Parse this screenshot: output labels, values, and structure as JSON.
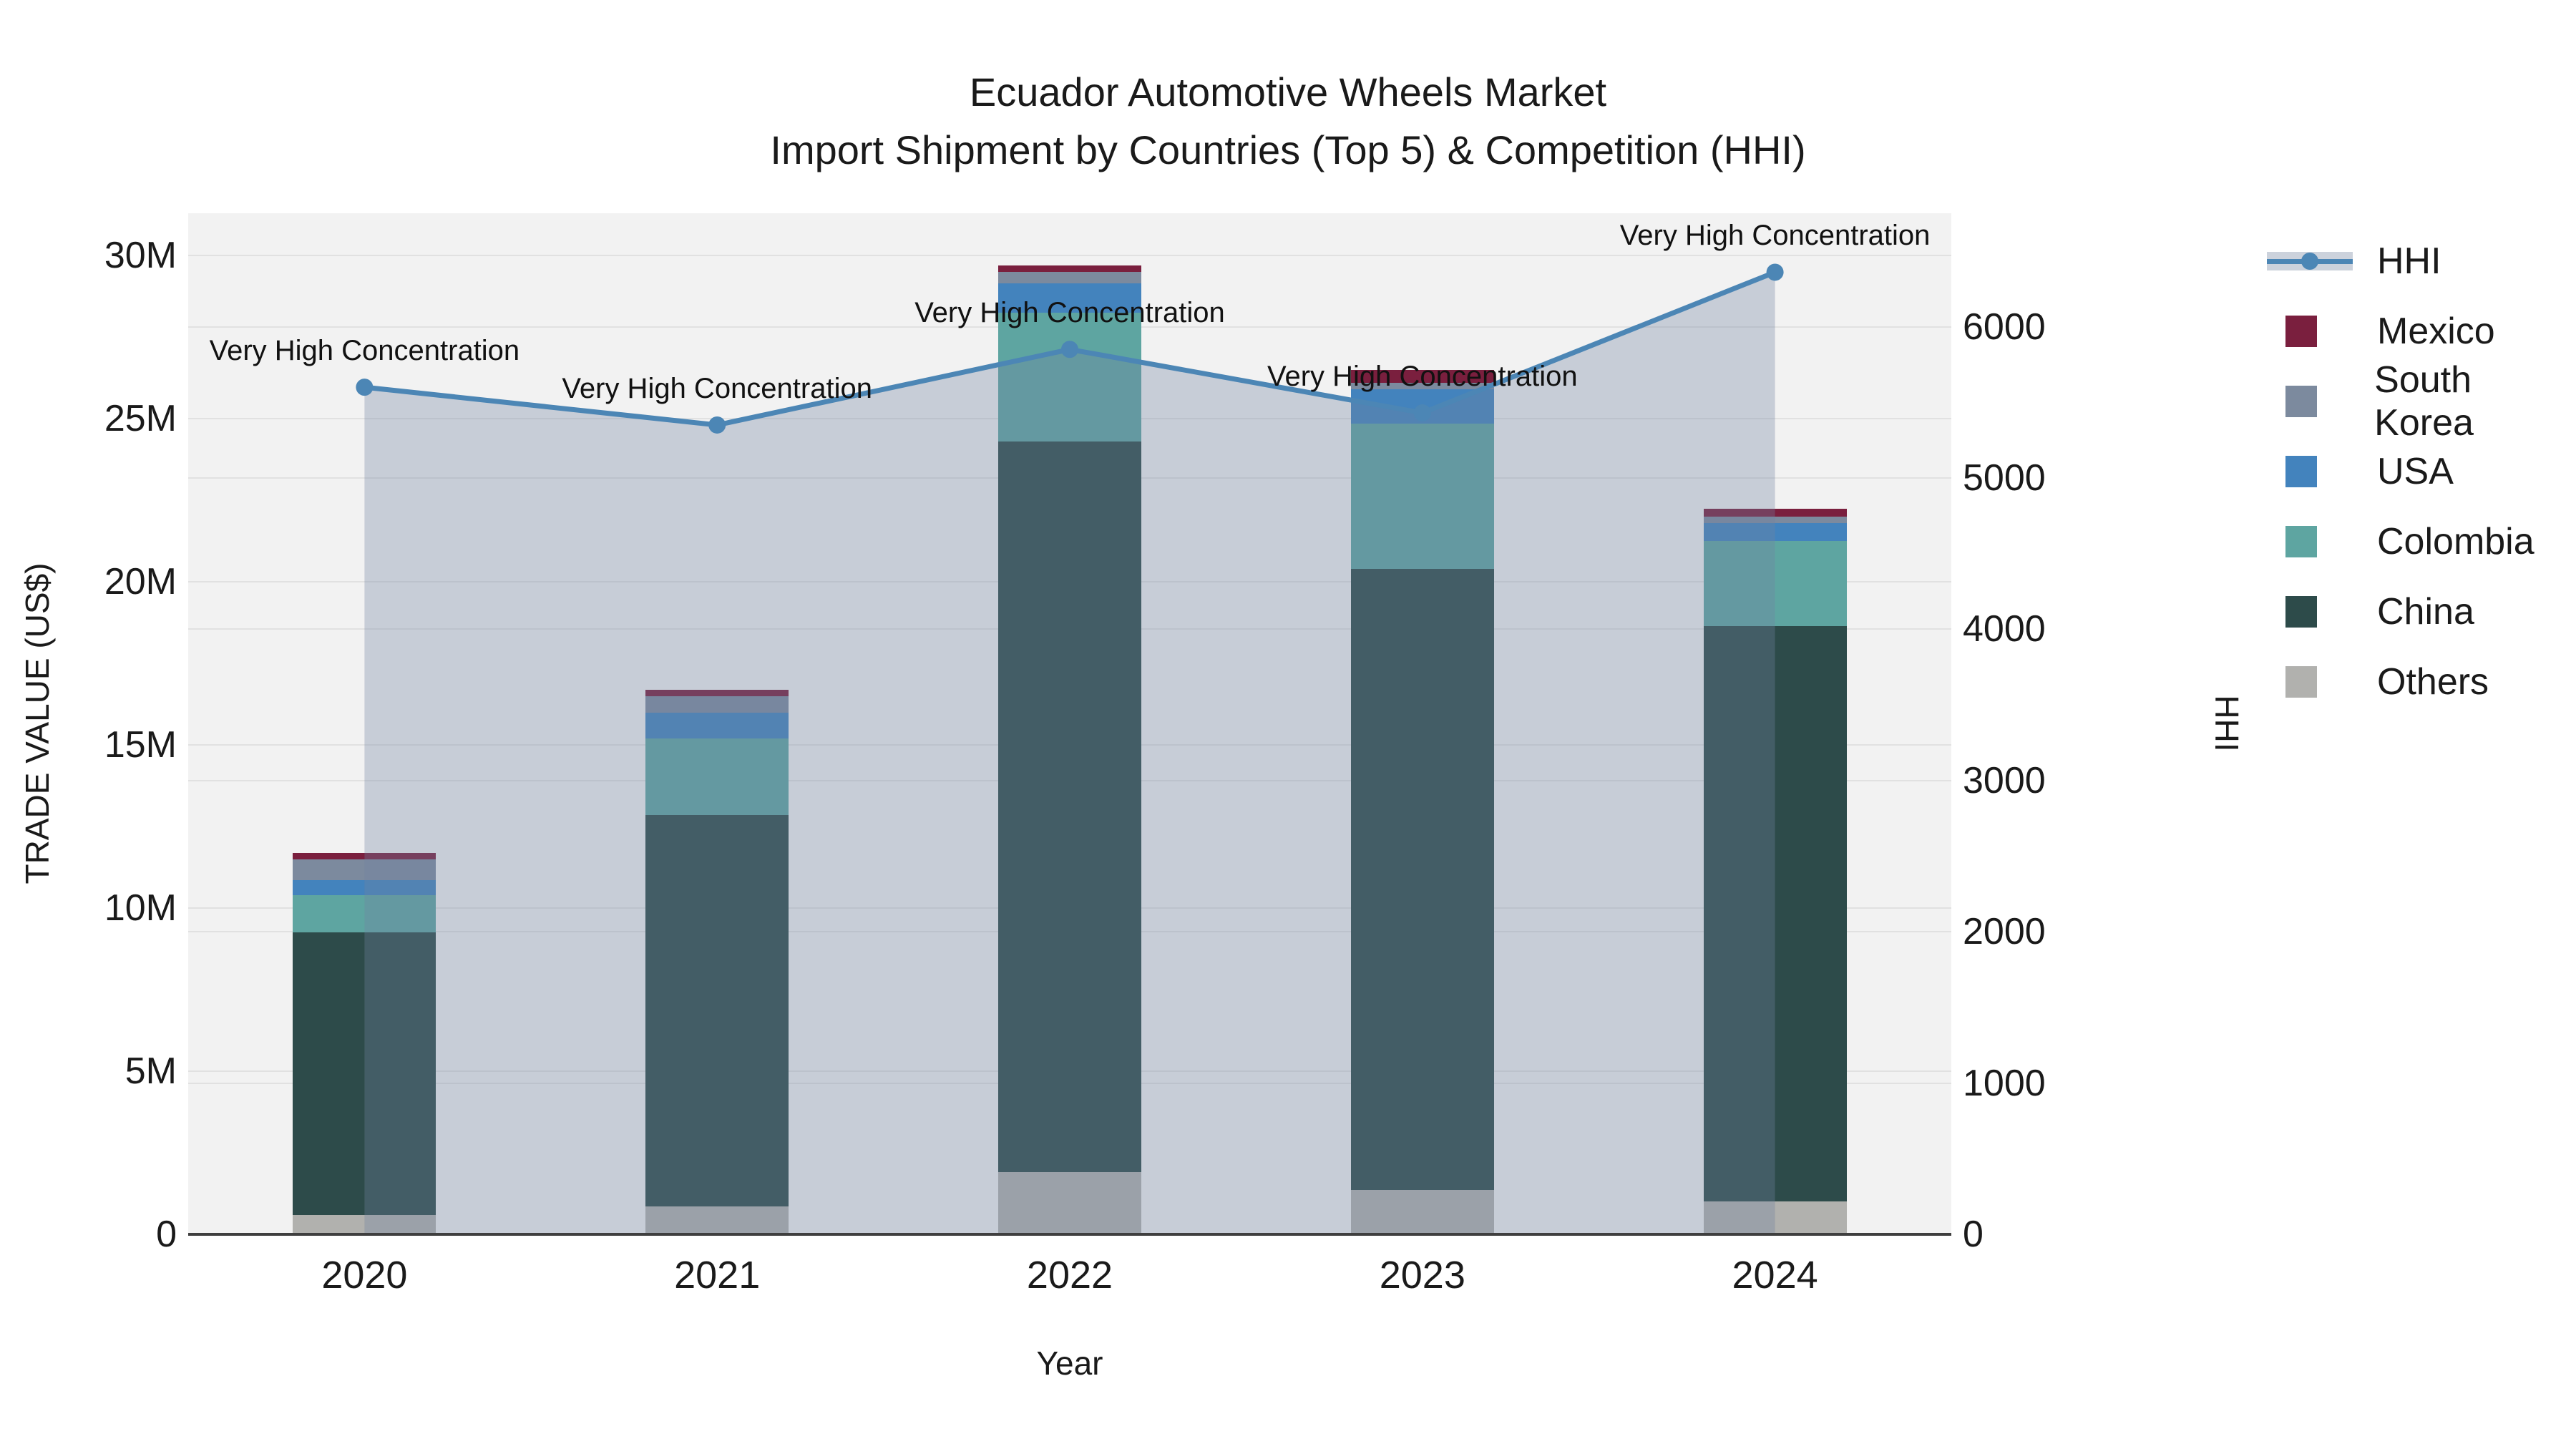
{
  "title": {
    "line1": "Ecuador Automotive Wheels Market",
    "line2": "Import Shipment by Countries (Top 5) & Competition (HHI)"
  },
  "axes": {
    "y_left": {
      "label": "TRADE VALUE (US$)",
      "ticks": [
        {
          "value": 0,
          "label": "0"
        },
        {
          "value": 5,
          "label": "5M"
        },
        {
          "value": 10,
          "label": "10M"
        },
        {
          "value": 15,
          "label": "15M"
        },
        {
          "value": 20,
          "label": "20M"
        },
        {
          "value": 25,
          "label": "25M"
        },
        {
          "value": 30,
          "label": "30M"
        }
      ],
      "max": 31.3
    },
    "y_right": {
      "label": "HHI",
      "ticks": [
        {
          "value": 0,
          "label": "0"
        },
        {
          "value": 1000,
          "label": "1000"
        },
        {
          "value": 2000,
          "label": "2000"
        },
        {
          "value": 3000,
          "label": "3000"
        },
        {
          "value": 4000,
          "label": "4000"
        },
        {
          "value": 5000,
          "label": "5000"
        },
        {
          "value": 6000,
          "label": "6000"
        }
      ],
      "max": 6750
    },
    "x": {
      "label": "Year"
    }
  },
  "legend": [
    {
      "label": "HHI",
      "type": "line",
      "color": "#4c86b5"
    },
    {
      "label": "Mexico",
      "type": "patch",
      "color": "#7a1f3e"
    },
    {
      "label": "South Korea",
      "type": "patch",
      "color": "#7c8a9e"
    },
    {
      "label": "USA",
      "type": "patch",
      "color": "#4383bd"
    },
    {
      "label": "Colombia",
      "type": "patch",
      "color": "#5ea5a1"
    },
    {
      "label": "China",
      "type": "patch",
      "color": "#2d4b4a"
    },
    {
      "label": "Others",
      "type": "patch",
      "color": "#b1b1ae"
    }
  ],
  "chart_data": {
    "type": "bar",
    "subtype": "stacked-bars-with-line",
    "categories": [
      "2020",
      "2021",
      "2022",
      "2023",
      "2024"
    ],
    "bar_value_unit": "million US$",
    "series": [
      {
        "name": "Others",
        "color": "#b1b1ae",
        "values": [
          0.6,
          0.85,
          1.9,
          1.35,
          1.0
        ]
      },
      {
        "name": "China",
        "color": "#2d4b4a",
        "values": [
          8.65,
          12.0,
          22.4,
          19.05,
          17.65
        ]
      },
      {
        "name": "Colombia",
        "color": "#5ea5a1",
        "values": [
          1.15,
          2.35,
          3.95,
          4.45,
          2.6
        ]
      },
      {
        "name": "USA",
        "color": "#4383bd",
        "values": [
          0.45,
          0.8,
          0.9,
          1.05,
          0.55
        ]
      },
      {
        "name": "South Korea",
        "color": "#7c8a9e",
        "values": [
          0.65,
          0.5,
          0.35,
          0.2,
          0.2
        ]
      },
      {
        "name": "Mexico",
        "color": "#7a1f3e",
        "values": [
          0.2,
          0.2,
          0.2,
          0.4,
          0.25
        ]
      }
    ],
    "bar_totals": [
      11.7,
      16.7,
      29.7,
      26.5,
      22.25
    ],
    "line": {
      "name": "HHI",
      "color": "#4c86b5",
      "area_color": "rgba(113,132,162,0.33)",
      "values": [
        5600,
        5350,
        5850,
        5430,
        6360
      ]
    },
    "annotations": [
      {
        "category": "2020",
        "text": "Very High Concentration"
      },
      {
        "category": "2021",
        "text": "Very High Concentration"
      },
      {
        "category": "2022",
        "text": "Very High Concentration"
      },
      {
        "category": "2023",
        "text": "Very High Concentration"
      },
      {
        "category": "2024",
        "text": "Very High Concentration"
      }
    ],
    "xlabel": "Year",
    "ylabel_left": "TRADE VALUE (US$)",
    "ylabel_right": "HHI",
    "ylim_left": [
      0,
      31300000
    ],
    "ylim_right": [
      0,
      6750
    ],
    "grid": true,
    "legend_position": "right"
  }
}
